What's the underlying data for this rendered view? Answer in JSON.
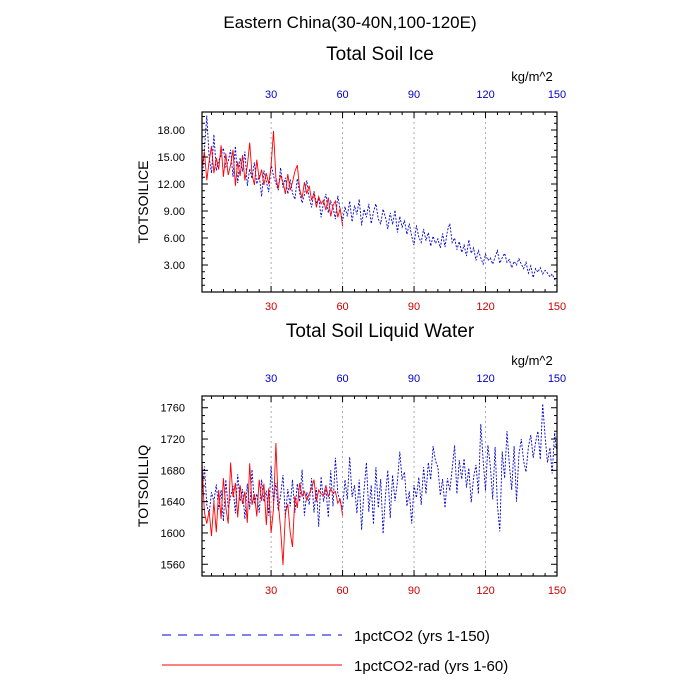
{
  "figure": {
    "title": "Eastern China(30-40N,100-120E)"
  },
  "legend": {
    "placement": "bottom",
    "entries": [
      {
        "label": "1pctCO2 (yrs 1-150)",
        "color": "#0000cc",
        "style": "dashed"
      },
      {
        "label": "1pctCO2-rad (yrs 1-60)",
        "color": "#ff0000",
        "style": "solid"
      }
    ]
  },
  "chart_data": [
    {
      "type": "line",
      "title": "Total Soil Ice",
      "ylabel": "TOTSOILICE",
      "units": "kg/m^2",
      "xlim": [
        1,
        150
      ],
      "ylim": [
        0,
        20
      ],
      "x_ticks": [
        30,
        60,
        90,
        120,
        150
      ],
      "y_ticks": [
        3,
        6,
        9,
        12,
        15,
        18
      ],
      "y_tick_labels": [
        "3.00",
        "6.00",
        "9.00",
        "12.00",
        "15.00",
        "18.00"
      ],
      "bottom_tick_color": "#cc0000",
      "top_tick_color": "#0000cc",
      "grid": "vertical dashed at x ticks",
      "series": [
        {
          "name": "1pctCO2 (yrs 1-150)",
          "color": "#0000cc",
          "dash": "dashed",
          "x_start": 1,
          "values": [
            12.2,
            15.8,
            19.6,
            15.0,
            13.2,
            17.5,
            13.5,
            14.6,
            15.2,
            16.0,
            13.9,
            14.5,
            15.8,
            12.8,
            16.2,
            12.1,
            14.9,
            13.4,
            15.6,
            11.8,
            13.7,
            12.6,
            14.4,
            12.0,
            13.0,
            10.6,
            13.5,
            12.3,
            11.1,
            14.2,
            12.9,
            12.1,
            11.3,
            13.8,
            11.6,
            12.7,
            10.9,
            12.5,
            11.0,
            10.3,
            12.6,
            11.0,
            9.9,
            10.8,
            12.4,
            10.5,
            9.4,
            11.2,
            9.8,
            10.5,
            8.3,
            9.9,
            10.9,
            8.8,
            10.1,
            9.4,
            8.1,
            10.7,
            9.1,
            7.9,
            9.5,
            8.4,
            10.1,
            7.8,
            9.6,
            8.6,
            10.3,
            7.4,
            9.2,
            8.3,
            9.8,
            7.6,
            8.9,
            9.8,
            8.1,
            7.6,
            9.2,
            8.3,
            7.0,
            8.8,
            7.5,
            9.1,
            6.6,
            8.4,
            7.2,
            7.9,
            6.4,
            7.6,
            6.2,
            5.2,
            7.4,
            6.1,
            5.5,
            7.0,
            5.7,
            6.6,
            5.1,
            6.2,
            5.4,
            5.9,
            4.9,
            6.5,
            5.0,
            6.8,
            7.6,
            5.5,
            6.0,
            4.7,
            5.6,
            4.4,
            5.2,
            4.0,
            5.8,
            4.3,
            4.9,
            3.5,
            4.6,
            3.8,
            3.1,
            4.2,
            3.5,
            3.8,
            3.1,
            3.9,
            4.6,
            3.2,
            3.8,
            4.3,
            3.3,
            3.6,
            2.7,
            3.4,
            3.0,
            3.7,
            3.1,
            2.6,
            3.3,
            2.1,
            2.9,
            1.6,
            2.6,
            2.2,
            2.7,
            2.0,
            2.4,
            2.1,
            1.7,
            2.0,
            1.4,
            1.2
          ]
        },
        {
          "name": "1pctCO2-rad (yrs 1-60)",
          "color": "#ff0000",
          "dash": "solid",
          "x_start": 1,
          "values": [
            13.8,
            15.6,
            12.4,
            14.5,
            16.2,
            13.2,
            14.9,
            13.6,
            16.3,
            12.8,
            15.4,
            13.0,
            14.1,
            15.8,
            11.8,
            14.5,
            12.9,
            15.2,
            12.4,
            14.0,
            16.6,
            13.1,
            11.9,
            14.7,
            12.5,
            13.6,
            11.9,
            13.2,
            12.0,
            14.0,
            17.9,
            12.7,
            11.5,
            13.0,
            12.2,
            10.9,
            13.1,
            11.3,
            12.2,
            13.4,
            14.1,
            11.4,
            10.4,
            12.2,
            10.9,
            11.8,
            10.2,
            11.0,
            9.4,
            10.6,
            9.8,
            10.2,
            9.1,
            10.5,
            8.4,
            9.6,
            10.1,
            8.3,
            9.3,
            7.3
          ]
        }
      ]
    },
    {
      "type": "line",
      "title": "Total Soil Liquid Water",
      "ylabel": "TOTSOILLIQ",
      "units": "kg/m^2",
      "xlim": [
        1,
        150
      ],
      "ylim": [
        1545,
        1775
      ],
      "x_ticks": [
        30,
        60,
        90,
        120,
        150
      ],
      "y_ticks": [
        1560,
        1600,
        1640,
        1680,
        1720,
        1760
      ],
      "y_tick_labels": [
        "1560",
        "1600",
        "1640",
        "1680",
        "1720",
        "1760"
      ],
      "bottom_tick_color": "#cc0000",
      "top_tick_color": "#0000cc",
      "grid": "vertical dashed at x ticks",
      "series": [
        {
          "name": "1pctCO2 (yrs 1-150)",
          "color": "#0000cc",
          "dash": "dashed",
          "x_start": 1,
          "values": [
            1648,
            1685,
            1636,
            1624,
            1652,
            1640,
            1662,
            1630,
            1655,
            1615,
            1668,
            1632,
            1646,
            1660,
            1625,
            1675,
            1641,
            1656,
            1618,
            1663,
            1630,
            1681,
            1637,
            1650,
            1626,
            1668,
            1640,
            1654,
            1622,
            1686,
            1638,
            1664,
            1629,
            1648,
            1674,
            1620,
            1656,
            1634,
            1668,
            1626,
            1663,
            1640,
            1681,
            1622,
            1652,
            1636,
            1670,
            1626,
            1658,
            1608,
            1672,
            1640,
            1656,
            1620,
            1680,
            1634,
            1696,
            1651,
            1640,
            1630,
            1668,
            1643,
            1697,
            1646,
            1661,
            1625,
            1668,
            1604,
            1654,
            1690,
            1627,
            1661,
            1611,
            1684,
            1632,
            1669,
            1599,
            1648,
            1680,
            1619,
            1674,
            1641,
            1665,
            1704,
            1668,
            1678,
            1634,
            1653,
            1612,
            1661,
            1645,
            1671,
            1636,
            1684,
            1650,
            1690,
            1668,
            1711,
            1692,
            1684,
            1648,
            1669,
            1632,
            1670,
            1654,
            1682,
            1712,
            1650,
            1693,
            1669,
            1695,
            1658,
            1683,
            1639,
            1671,
            1687,
            1650,
            1739,
            1694,
            1654,
            1712,
            1686,
            1643,
            1710,
            1636,
            1602,
            1704,
            1670,
            1730,
            1688,
            1655,
            1711,
            1640,
            1700,
            1720,
            1692,
            1678,
            1710,
            1725,
            1696,
            1716,
            1730,
            1694,
            1765,
            1723,
            1690,
            1709,
            1676,
            1728,
            1702
          ]
        },
        {
          "name": "1pctCO2-rad (yrs 1-60)",
          "color": "#ff0000",
          "dash": "solid",
          "x_start": 1,
          "values": [
            1690,
            1626,
            1612,
            1628,
            1596,
            1640,
            1601,
            1655,
            1618,
            1670,
            1633,
            1612,
            1690,
            1646,
            1664,
            1620,
            1661,
            1637,
            1653,
            1613,
            1689,
            1636,
            1650,
            1621,
            1668,
            1641,
            1663,
            1610,
            1657,
            1600,
            1631,
            1715,
            1640,
            1605,
            1559,
            1625,
            1637,
            1601,
            1582,
            1647,
            1632,
            1664,
            1647,
            1653,
            1642,
            1650,
            1657,
            1668,
            1640,
            1655,
            1650,
            1648,
            1661,
            1646,
            1656,
            1651,
            1653,
            1638,
            1643,
            1622
          ]
        }
      ]
    }
  ]
}
